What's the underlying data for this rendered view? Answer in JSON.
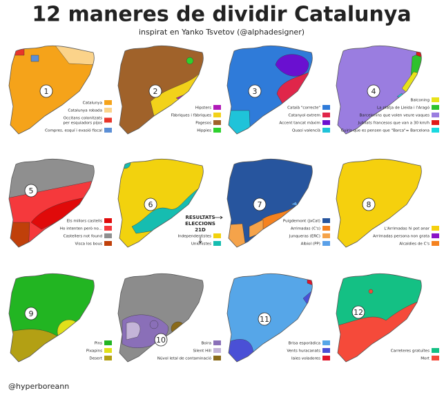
{
  "title": "12 maneres de dividir Catalunya",
  "subtitle": "inspirat en Yanko Tsvetov (@alphadesigner)",
  "credit": "@hyperboreann",
  "annotation": [
    "RESULTATS",
    "ELECCIONS",
    "21D"
  ],
  "maps": [
    {
      "number": "1",
      "legend": [
        {
          "label": [
            "Catalunya"
          ],
          "color": "#f5a31a"
        },
        {
          "label": [
            "Catalunya robada"
          ],
          "color": "#fbd38a"
        },
        {
          "label": [
            "Occitans colonitzats",
            "per esquiadors pijos"
          ],
          "color": "#e8352a"
        },
        {
          "label": [
            "Compres, esquí i evasió fiscal"
          ],
          "color": "#5b8fd6"
        }
      ]
    },
    {
      "number": "2",
      "legend": [
        {
          "label": [
            "Hipsters"
          ],
          "color": "#b01ab8"
        },
        {
          "label": [
            "Fàbriques i fàbriques"
          ],
          "color": "#f2d21a"
        },
        {
          "label": [
            "Pagesos"
          ],
          "color": "#a0622a"
        },
        {
          "label": [
            "Hippies"
          ],
          "color": "#2ed12e"
        }
      ]
    },
    {
      "number": "3",
      "legend": [
        {
          "label": [
            "Català \"correcte\""
          ],
          "color": "#2f7bd9"
        },
        {
          "label": [
            "Catanyol extrem"
          ],
          "color": "#e0264a"
        },
        {
          "label": [
            "Accent tancat màxim"
          ],
          "color": "#6a10d0"
        },
        {
          "label": [
            "Quasi valencià"
          ],
          "color": "#1fc3d9"
        }
      ]
    },
    {
      "number": "4",
      "legend": [
        {
          "label": [
            "Balconing"
          ],
          "color": "#e8e21a"
        },
        {
          "label": [
            "La platja de Lleida i l'Aragó"
          ],
          "color": "#2ec22e"
        },
        {
          "label": [
            "Barcelonins que volen veure vaques"
          ],
          "color": "#9a7de0"
        },
        {
          "label": [
            "Jubilats francesos que van a 30 km/h"
          ],
          "color": "#e01a1a"
        },
        {
          "label": [
            "Guiris que es pensen que \"Barca\"= Barcelona"
          ],
          "color": "#1ad9e0"
        }
      ]
    },
    {
      "number": "5",
      "legend": [
        {
          "label": [
            "Els millors castells"
          ],
          "color": "#e00a0a"
        },
        {
          "label": [
            "Ho intenten però no..."
          ],
          "color": "#f5393c"
        },
        {
          "label": [
            "Castellers not found"
          ],
          "color": "#8f8f8f"
        },
        {
          "label": [
            "Visca los bous"
          ],
          "color": "#c0400a"
        }
      ]
    },
    {
      "number": "6",
      "legend": [
        {
          "label": [
            "Independentistes"
          ],
          "color": "#f2d20e"
        },
        {
          "label": [
            "Unionistes"
          ],
          "color": "#16bdb0"
        }
      ]
    },
    {
      "number": "7",
      "legend": [
        {
          "label": [
            "Puigdemont (JxCat)"
          ],
          "color": "#27559e"
        },
        {
          "label": [
            "Arrimadas (C's)"
          ],
          "color": "#f5821f"
        },
        {
          "label": [
            "Junqueras (ERC)"
          ],
          "color": "#f5a34a"
        },
        {
          "label": [
            "Albiol (PP)"
          ],
          "color": "#5aa0e8"
        }
      ]
    },
    {
      "number": "8",
      "legend": [
        {
          "label": [
            "L'Arrimadas hi pot anar"
          ],
          "color": "#f5d00e"
        },
        {
          "label": [
            "Arrimadas persona non grata"
          ],
          "color": "#8a14c8"
        },
        {
          "label": [
            "Alcaldies de C's"
          ],
          "color": "#f5821f"
        }
      ]
    },
    {
      "number": "9",
      "legend": [
        {
          "label": [
            "Pins"
          ],
          "color": "#22b522"
        },
        {
          "label": [
            "Pixapins"
          ],
          "color": "#e0e01a"
        },
        {
          "label": [
            "Desert"
          ],
          "color": "#b3a014"
        }
      ]
    },
    {
      "number": "10",
      "legend": [
        {
          "label": [
            "Boira"
          ],
          "color": "#8a6fb8"
        },
        {
          "label": [
            "Silent Hill"
          ],
          "color": "#c4b4d8"
        },
        {
          "label": [
            "Núvol letal de contaminació"
          ],
          "color": "#8a6a1a"
        }
      ]
    },
    {
      "number": "11",
      "legend": [
        {
          "label": [
            "Brisa esporàdica"
          ],
          "color": "#56a6e8"
        },
        {
          "label": [
            "Vents huracanats"
          ],
          "color": "#4a50d6"
        },
        {
          "label": [
            "Iaies voladores"
          ],
          "color": "#e0142a"
        }
      ]
    },
    {
      "number": "12",
      "legend": [
        {
          "label": [
            "Carreteres gratuïtes"
          ],
          "color": "#14c084"
        },
        {
          "label": [
            "Mort"
          ],
          "color": "#f54a3a"
        }
      ]
    }
  ]
}
